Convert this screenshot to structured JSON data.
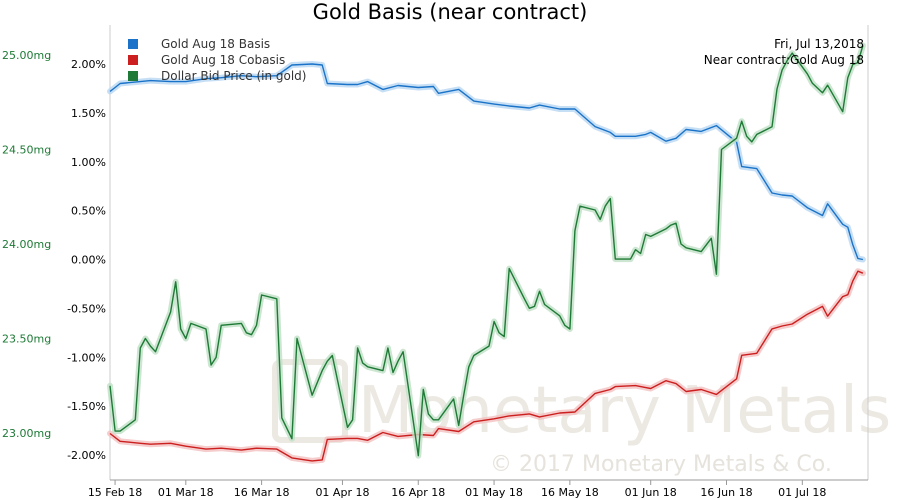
{
  "chart_data": {
    "type": "line",
    "title": "Gold Basis (near contract)",
    "info": [
      "Fri, Jul 13,2018",
      "Near contract:Gold Aug 18"
    ],
    "watermark": [
      "Monetary Metals",
      "© 2017 Monetary Metals & Co."
    ],
    "x_ticks": [
      "15 Feb 18",
      "01 Mar 18",
      "16 Mar 18",
      "01 Apr 18",
      "16 Apr 18",
      "01 May 18",
      "16 May 18",
      "01 Jun 18",
      "16 Jun 18",
      "01 Jul 18"
    ],
    "x_range": [
      "2018-02-14",
      "2018-07-14"
    ],
    "left_axis": {
      "ticks": [
        "23.00mg",
        "23.50mg",
        "24.00mg",
        "24.50mg",
        "25.00mg"
      ],
      "values": [
        23.0,
        23.5,
        24.0,
        24.5,
        25.0
      ],
      "color": "#1e7a36"
    },
    "right_axis": {
      "ticks": [
        "-2.00%",
        "-1.50%",
        "-1.00%",
        "-0.50%",
        "0.00%",
        "0.50%",
        "1.00%",
        "1.50%",
        "2.00%"
      ],
      "values": [
        -2.0,
        -1.5,
        -1.0,
        -0.5,
        0.0,
        0.5,
        1.0,
        1.5,
        2.0
      ]
    },
    "grid": false,
    "legend_position": "top-left",
    "series": [
      {
        "name": "Gold Aug 18 Basis",
        "color": "#1a73c8",
        "axis": "right",
        "points": [
          [
            "2018-02-14",
            1.72
          ],
          [
            "2018-02-15",
            1.76
          ],
          [
            "2018-02-16",
            1.8
          ],
          [
            "2018-02-20",
            1.82
          ],
          [
            "2018-02-22",
            1.83
          ],
          [
            "2018-02-26",
            1.82
          ],
          [
            "2018-03-01",
            1.82
          ],
          [
            "2018-03-05",
            1.85
          ],
          [
            "2018-03-08",
            1.86
          ],
          [
            "2018-03-12",
            1.88
          ],
          [
            "2018-03-15",
            1.87
          ],
          [
            "2018-03-19",
            1.88
          ],
          [
            "2018-03-22",
            1.99
          ],
          [
            "2018-03-26",
            2.0
          ],
          [
            "2018-03-28",
            1.99
          ],
          [
            "2018-03-29",
            1.8
          ],
          [
            "2018-04-02",
            1.79
          ],
          [
            "2018-04-04",
            1.79
          ],
          [
            "2018-04-06",
            1.82
          ],
          [
            "2018-04-09",
            1.74
          ],
          [
            "2018-04-12",
            1.78
          ],
          [
            "2018-04-16",
            1.76
          ],
          [
            "2018-04-19",
            1.77
          ],
          [
            "2018-04-20",
            1.7
          ],
          [
            "2018-04-24",
            1.74
          ],
          [
            "2018-04-27",
            1.62
          ],
          [
            "2018-05-01",
            1.59
          ],
          [
            "2018-05-04",
            1.57
          ],
          [
            "2018-05-08",
            1.55
          ],
          [
            "2018-05-10",
            1.58
          ],
          [
            "2018-05-14",
            1.54
          ],
          [
            "2018-05-17",
            1.54
          ],
          [
            "2018-05-21",
            1.36
          ],
          [
            "2018-05-24",
            1.3
          ],
          [
            "2018-05-25",
            1.26
          ],
          [
            "2018-05-29",
            1.26
          ],
          [
            "2018-05-31",
            1.28
          ],
          [
            "2018-06-01",
            1.3
          ],
          [
            "2018-06-04",
            1.21
          ],
          [
            "2018-06-06",
            1.24
          ],
          [
            "2018-06-08",
            1.33
          ],
          [
            "2018-06-11",
            1.31
          ],
          [
            "2018-06-14",
            1.37
          ],
          [
            "2018-06-18",
            1.2
          ],
          [
            "2018-06-19",
            0.95
          ],
          [
            "2018-06-22",
            0.93
          ],
          [
            "2018-06-25",
            0.68
          ],
          [
            "2018-06-27",
            0.66
          ],
          [
            "2018-06-29",
            0.65
          ],
          [
            "2018-07-02",
            0.53
          ],
          [
            "2018-07-05",
            0.45
          ],
          [
            "2018-07-06",
            0.57
          ],
          [
            "2018-07-09",
            0.36
          ],
          [
            "2018-07-10",
            0.33
          ],
          [
            "2018-07-11",
            0.15
          ],
          [
            "2018-07-12",
            0.01
          ],
          [
            "2018-07-13",
            0.0
          ]
        ]
      },
      {
        "name": "Gold Aug 18 Cobasis",
        "color": "#cc1f1f",
        "axis": "right",
        "points": [
          [
            "2018-02-14",
            -1.78
          ],
          [
            "2018-02-15",
            -1.82
          ],
          [
            "2018-02-16",
            -1.86
          ],
          [
            "2018-02-20",
            -1.88
          ],
          [
            "2018-02-22",
            -1.89
          ],
          [
            "2018-02-26",
            -1.88
          ],
          [
            "2018-03-01",
            -1.91
          ],
          [
            "2018-03-05",
            -1.94
          ],
          [
            "2018-03-08",
            -1.93
          ],
          [
            "2018-03-12",
            -1.95
          ],
          [
            "2018-03-15",
            -1.93
          ],
          [
            "2018-03-19",
            -1.94
          ],
          [
            "2018-03-22",
            -2.03
          ],
          [
            "2018-03-26",
            -2.06
          ],
          [
            "2018-03-28",
            -2.05
          ],
          [
            "2018-03-29",
            -1.84
          ],
          [
            "2018-04-02",
            -1.83
          ],
          [
            "2018-04-04",
            -1.83
          ],
          [
            "2018-04-06",
            -1.85
          ],
          [
            "2018-04-09",
            -1.77
          ],
          [
            "2018-04-12",
            -1.81
          ],
          [
            "2018-04-16",
            -1.79
          ],
          [
            "2018-04-19",
            -1.8
          ],
          [
            "2018-04-20",
            -1.73
          ],
          [
            "2018-04-24",
            -1.76
          ],
          [
            "2018-04-27",
            -1.66
          ],
          [
            "2018-05-01",
            -1.63
          ],
          [
            "2018-05-04",
            -1.6
          ],
          [
            "2018-05-08",
            -1.58
          ],
          [
            "2018-05-10",
            -1.61
          ],
          [
            "2018-05-14",
            -1.57
          ],
          [
            "2018-05-17",
            -1.56
          ],
          [
            "2018-05-21",
            -1.37
          ],
          [
            "2018-05-24",
            -1.33
          ],
          [
            "2018-05-25",
            -1.3
          ],
          [
            "2018-05-29",
            -1.29
          ],
          [
            "2018-05-31",
            -1.31
          ],
          [
            "2018-06-01",
            -1.32
          ],
          [
            "2018-06-04",
            -1.24
          ],
          [
            "2018-06-06",
            -1.27
          ],
          [
            "2018-06-08",
            -1.35
          ],
          [
            "2018-06-11",
            -1.33
          ],
          [
            "2018-06-14",
            -1.38
          ],
          [
            "2018-06-18",
            -1.22
          ],
          [
            "2018-06-19",
            -0.98
          ],
          [
            "2018-06-22",
            -0.96
          ],
          [
            "2018-06-25",
            -0.71
          ],
          [
            "2018-06-27",
            -0.68
          ],
          [
            "2018-06-29",
            -0.66
          ],
          [
            "2018-07-02",
            -0.56
          ],
          [
            "2018-07-05",
            -0.48
          ],
          [
            "2018-07-06",
            -0.58
          ],
          [
            "2018-07-09",
            -0.38
          ],
          [
            "2018-07-10",
            -0.36
          ],
          [
            "2018-07-11",
            -0.22
          ],
          [
            "2018-07-12",
            -0.12
          ],
          [
            "2018-07-13",
            -0.14
          ]
        ]
      },
      {
        "name": "Dollar Bid Price (in gold)",
        "color": "#1e7a36",
        "axis": "left",
        "points": [
          [
            "2018-02-14",
            23.25
          ],
          [
            "2018-02-15",
            23.01
          ],
          [
            "2018-02-16",
            23.01
          ],
          [
            "2018-02-19",
            23.07
          ],
          [
            "2018-02-20",
            23.45
          ],
          [
            "2018-02-21",
            23.5
          ],
          [
            "2018-02-22",
            23.46
          ],
          [
            "2018-02-23",
            23.43
          ],
          [
            "2018-02-26",
            23.64
          ],
          [
            "2018-02-27",
            23.8
          ],
          [
            "2018-02-28",
            23.55
          ],
          [
            "2018-03-01",
            23.5
          ],
          [
            "2018-03-02",
            23.58
          ],
          [
            "2018-03-05",
            23.55
          ],
          [
            "2018-03-06",
            23.36
          ],
          [
            "2018-03-07",
            23.4
          ],
          [
            "2018-03-08",
            23.57
          ],
          [
            "2018-03-12",
            23.58
          ],
          [
            "2018-03-13",
            23.53
          ],
          [
            "2018-03-14",
            23.52
          ],
          [
            "2018-03-15",
            23.57
          ],
          [
            "2018-03-16",
            23.73
          ],
          [
            "2018-03-19",
            23.71
          ],
          [
            "2018-03-20",
            23.08
          ],
          [
            "2018-03-22",
            22.97
          ],
          [
            "2018-03-23",
            23.5
          ],
          [
            "2018-03-26",
            23.2
          ],
          [
            "2018-03-28",
            23.33
          ],
          [
            "2018-03-29",
            23.38
          ],
          [
            "2018-03-30",
            23.41
          ],
          [
            "2018-04-02",
            23.03
          ],
          [
            "2018-04-03",
            23.07
          ],
          [
            "2018-04-04",
            23.45
          ],
          [
            "2018-04-05",
            23.37
          ],
          [
            "2018-04-06",
            23.35
          ],
          [
            "2018-04-09",
            23.33
          ],
          [
            "2018-04-10",
            23.45
          ],
          [
            "2018-04-11",
            23.32
          ],
          [
            "2018-04-12",
            23.38
          ],
          [
            "2018-04-13",
            23.43
          ],
          [
            "2018-04-16",
            22.88
          ],
          [
            "2018-04-17",
            23.23
          ],
          [
            "2018-04-18",
            23.1
          ],
          [
            "2018-04-19",
            23.07
          ],
          [
            "2018-04-20",
            23.07
          ],
          [
            "2018-04-23",
            23.18
          ],
          [
            "2018-04-24",
            23.04
          ],
          [
            "2018-04-25",
            23.2
          ],
          [
            "2018-04-26",
            23.35
          ],
          [
            "2018-04-27",
            23.41
          ],
          [
            "2018-04-30",
            23.46
          ],
          [
            "2018-05-01",
            23.59
          ],
          [
            "2018-05-02",
            23.53
          ],
          [
            "2018-05-03",
            23.51
          ],
          [
            "2018-05-04",
            23.87
          ],
          [
            "2018-05-07",
            23.71
          ],
          [
            "2018-05-08",
            23.66
          ],
          [
            "2018-05-09",
            23.67
          ],
          [
            "2018-05-10",
            23.75
          ],
          [
            "2018-05-11",
            23.68
          ],
          [
            "2018-05-14",
            23.62
          ],
          [
            "2018-05-15",
            23.57
          ],
          [
            "2018-05-16",
            23.55
          ],
          [
            "2018-05-17",
            24.07
          ],
          [
            "2018-05-18",
            24.2
          ],
          [
            "2018-05-21",
            24.18
          ],
          [
            "2018-05-22",
            24.13
          ],
          [
            "2018-05-23",
            24.2
          ],
          [
            "2018-05-24",
            24.24
          ],
          [
            "2018-05-25",
            23.92
          ],
          [
            "2018-05-28",
            23.92
          ],
          [
            "2018-05-29",
            23.97
          ],
          [
            "2018-05-30",
            23.95
          ],
          [
            "2018-05-31",
            24.05
          ],
          [
            "2018-06-01",
            24.04
          ],
          [
            "2018-06-04",
            24.08
          ],
          [
            "2018-06-05",
            24.1
          ],
          [
            "2018-06-06",
            24.11
          ],
          [
            "2018-06-07",
            24.0
          ],
          [
            "2018-06-08",
            23.98
          ],
          [
            "2018-06-11",
            23.96
          ],
          [
            "2018-06-13",
            24.03
          ],
          [
            "2018-06-14",
            23.84
          ],
          [
            "2018-06-15",
            24.5
          ],
          [
            "2018-06-18",
            24.56
          ],
          [
            "2018-06-19",
            24.65
          ],
          [
            "2018-06-20",
            24.57
          ],
          [
            "2018-06-21",
            24.54
          ],
          [
            "2018-06-22",
            24.58
          ],
          [
            "2018-06-25",
            24.62
          ],
          [
            "2018-06-26",
            24.82
          ],
          [
            "2018-06-27",
            24.92
          ],
          [
            "2018-06-28",
            24.97
          ],
          [
            "2018-06-29",
            25.01
          ],
          [
            "2018-07-02",
            24.9
          ],
          [
            "2018-07-03",
            24.85
          ],
          [
            "2018-07-05",
            24.8
          ],
          [
            "2018-07-06",
            24.84
          ],
          [
            "2018-07-09",
            24.7
          ],
          [
            "2018-07-10",
            24.88
          ],
          [
            "2018-07-11",
            24.95
          ],
          [
            "2018-07-12",
            24.96
          ],
          [
            "2018-07-13",
            25.05
          ]
        ]
      }
    ]
  }
}
